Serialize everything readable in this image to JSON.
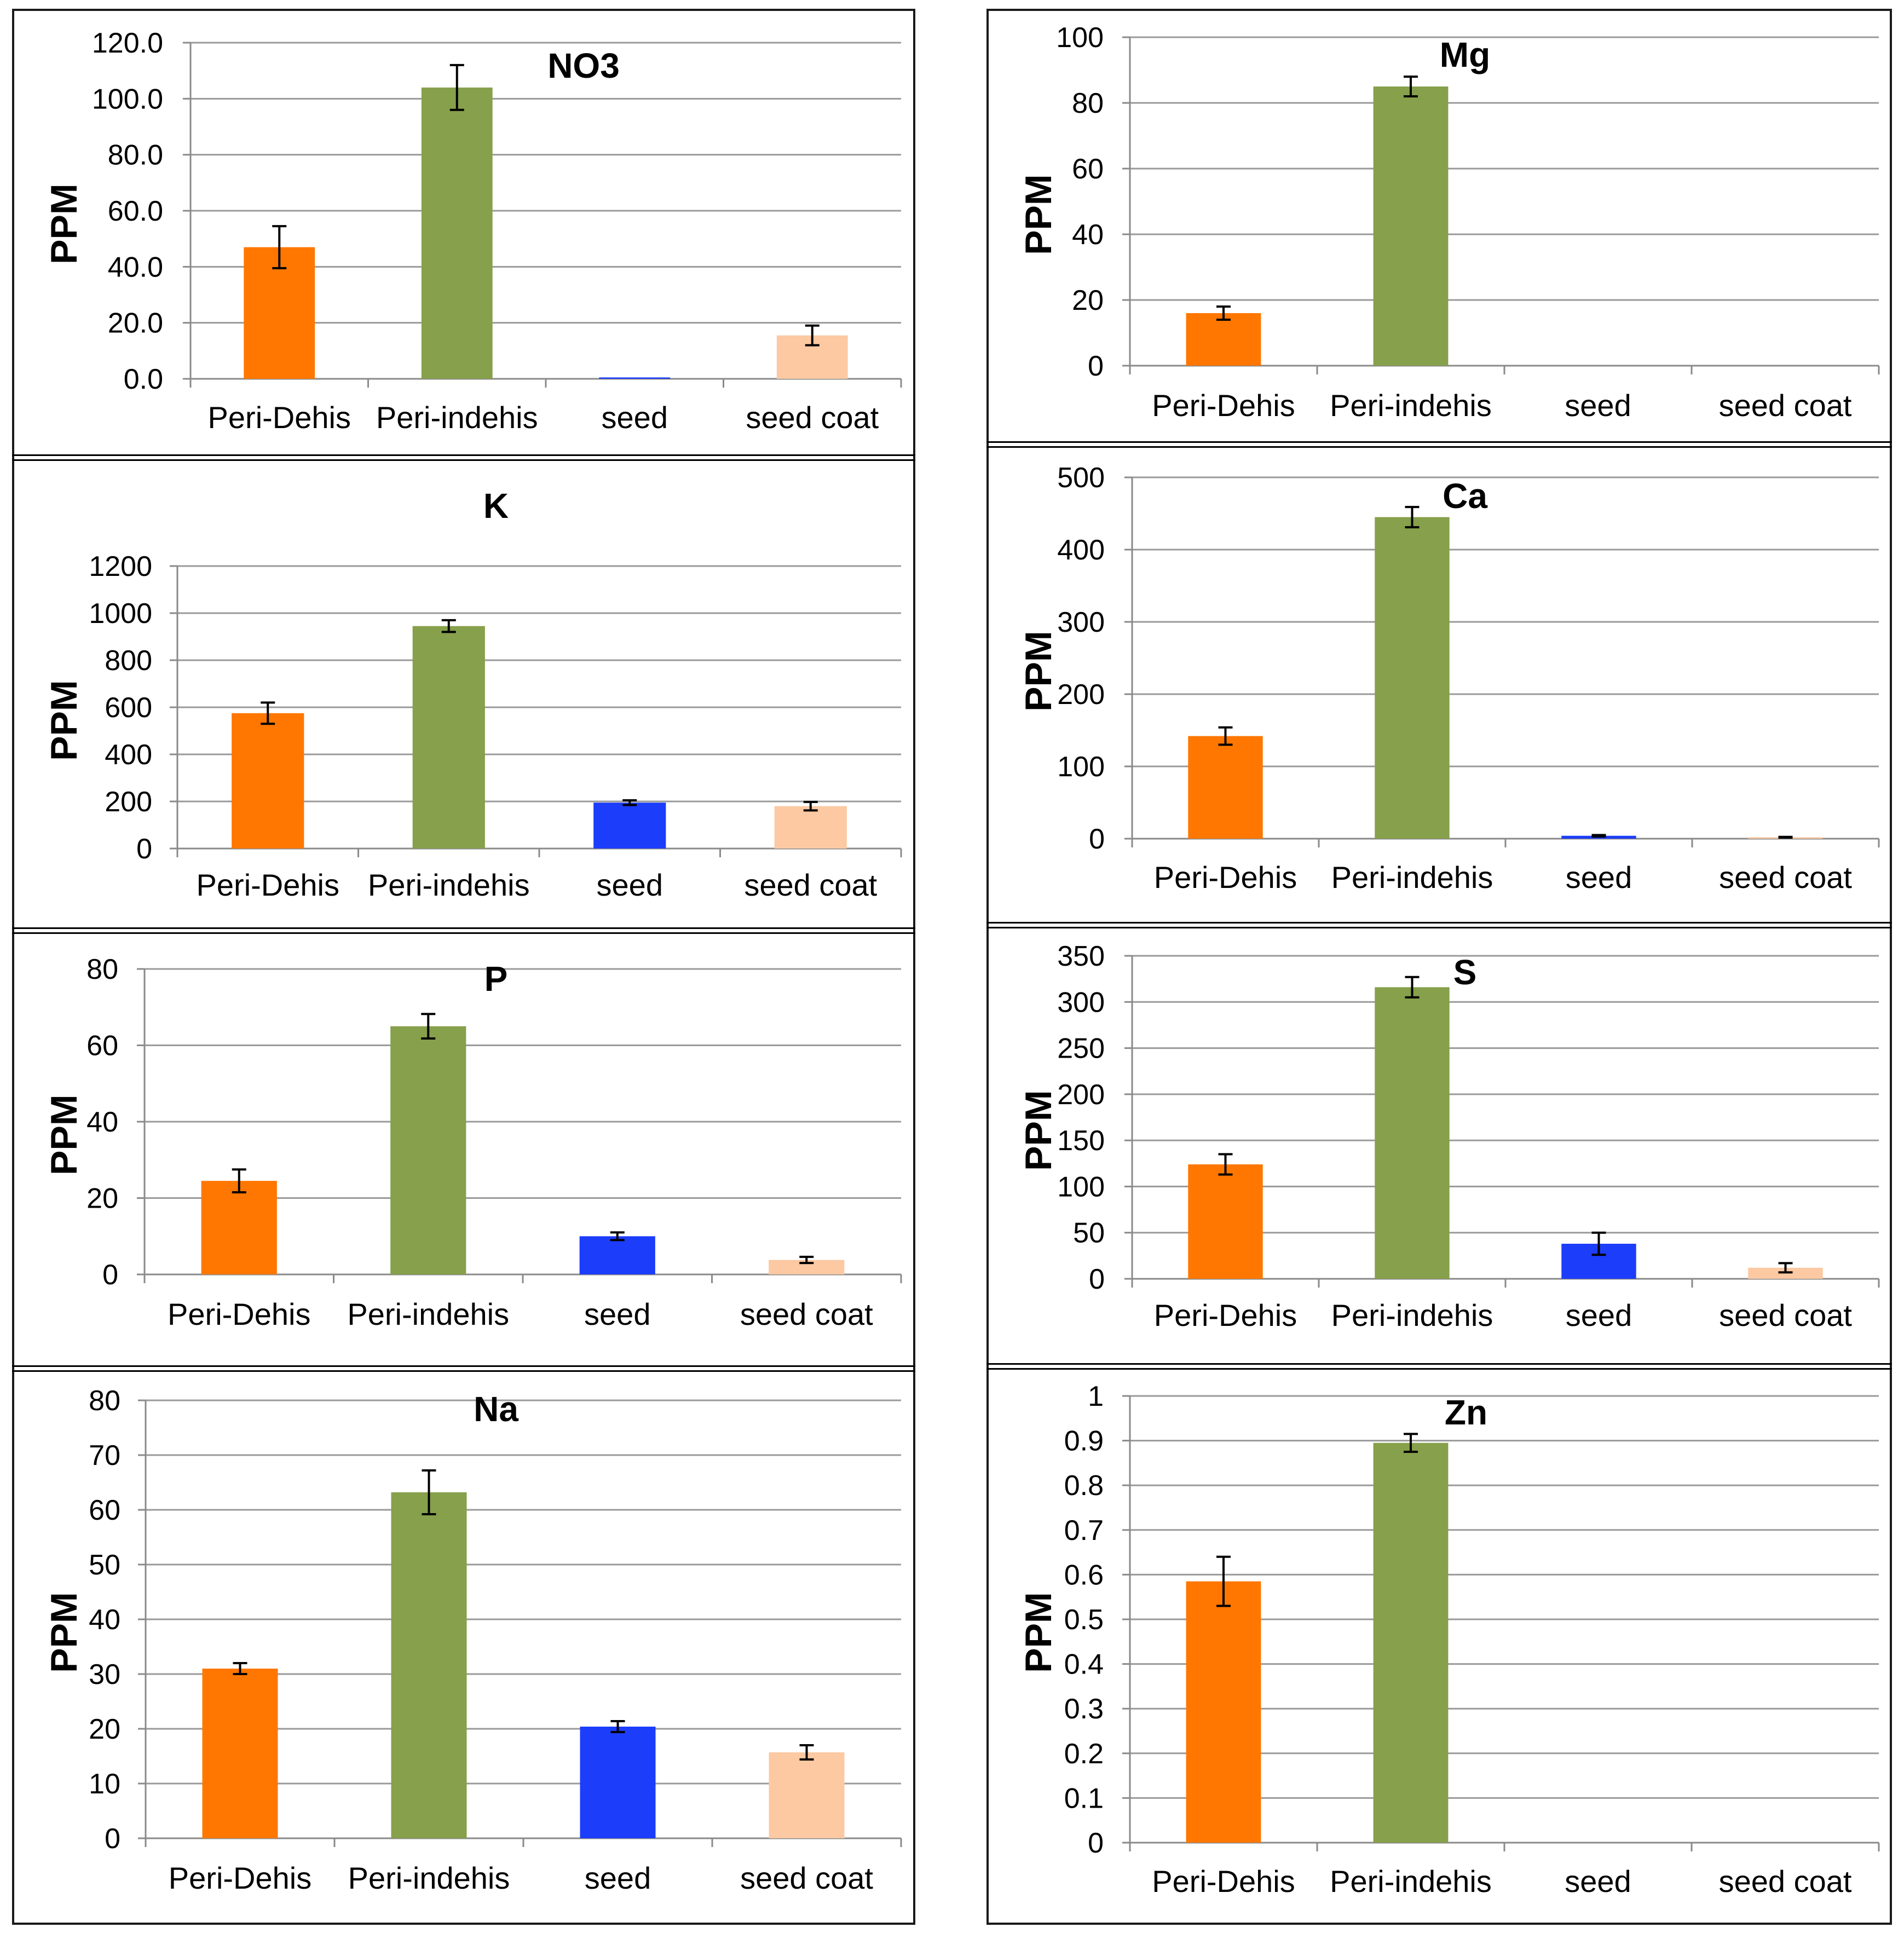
{
  "chart_data": [
    {
      "type": "bar",
      "title": "NO3",
      "ylabel": "PPM",
      "categories": [
        "Peri-Dehis",
        "Peri-indehis",
        "seed",
        "seed coat"
      ],
      "values": [
        47.0,
        104.0,
        0.5,
        15.5
      ],
      "errors": [
        7.5,
        8.0,
        0.0,
        3.5
      ],
      "ylim": [
        0,
        120
      ],
      "yticks": [
        "0.0",
        "20.0",
        "40.0",
        "60.0",
        "80.0",
        "100.0",
        "120.0"
      ],
      "colors": [
        "#ff7700",
        "#86a04b",
        "#1c3dfa",
        "#fcc9a2"
      ],
      "grid": true
    },
    {
      "type": "bar",
      "title": "Mg",
      "ylabel": "PPM",
      "categories": [
        "Peri-Dehis",
        "Peri-indehis",
        "seed",
        "seed coat"
      ],
      "values": [
        16,
        85,
        0,
        0
      ],
      "errors": [
        2,
        3,
        0,
        0
      ],
      "ylim": [
        0,
        100
      ],
      "yticks": [
        "0",
        "20",
        "40",
        "60",
        "80",
        "100"
      ],
      "colors": [
        "#ff7700",
        "#86a04b",
        "#1c3dfa",
        "#fcc9a2"
      ],
      "grid": true
    },
    {
      "type": "bar",
      "title": "K",
      "ylabel": "PPM",
      "categories": [
        "Peri-Dehis",
        "Peri-indehis",
        "seed",
        "seed coat"
      ],
      "values": [
        575,
        945,
        195,
        180
      ],
      "errors": [
        45,
        25,
        10,
        18
      ],
      "ylim": [
        0,
        1200
      ],
      "yticks": [
        "0",
        "200",
        "400",
        "600",
        "800",
        "1000",
        "1200"
      ],
      "colors": [
        "#ff7700",
        "#86a04b",
        "#1c3dfa",
        "#fcc9a2"
      ],
      "grid": true
    },
    {
      "type": "bar",
      "title": "Ca",
      "ylabel": "PPM",
      "categories": [
        "Peri-Dehis",
        "Peri-indehis",
        "seed",
        "seed coat"
      ],
      "values": [
        142,
        445,
        4,
        2
      ],
      "errors": [
        12,
        14,
        1,
        0.5
      ],
      "ylim": [
        0,
        500
      ],
      "yticks": [
        "0",
        "100",
        "200",
        "300",
        "400",
        "500"
      ],
      "colors": [
        "#ff7700",
        "#86a04b",
        "#1c3dfa",
        "#fcc9a2"
      ],
      "grid": true
    },
    {
      "type": "bar",
      "title": "P",
      "ylabel": "PPM",
      "categories": [
        "Peri-Dehis",
        "Peri-indehis",
        "seed",
        "seed coat"
      ],
      "values": [
        24.5,
        65,
        10,
        3.8
      ],
      "errors": [
        3,
        3.2,
        1,
        0.8
      ],
      "ylim": [
        0,
        80
      ],
      "yticks": [
        "0",
        "20",
        "40",
        "60",
        "80"
      ],
      "colors": [
        "#ff7700",
        "#86a04b",
        "#1c3dfa",
        "#fcc9a2"
      ],
      "grid": true
    },
    {
      "type": "bar",
      "title": "S",
      "ylabel": "PPM",
      "categories": [
        "Peri-Dehis",
        "Peri-indehis",
        "seed",
        "seed coat"
      ],
      "values": [
        124,
        316,
        38,
        12
      ],
      "errors": [
        11,
        11,
        12,
        5
      ],
      "ylim": [
        0,
        350
      ],
      "yticks": [
        "0",
        "50",
        "100",
        "150",
        "200",
        "250",
        "300",
        "350"
      ],
      "colors": [
        "#ff7700",
        "#86a04b",
        "#1c3dfa",
        "#fcc9a2"
      ],
      "grid": true
    },
    {
      "type": "bar",
      "title": "Na",
      "ylabel": "PPM",
      "categories": [
        "Peri-Dehis",
        "Peri-indehis",
        "seed",
        "seed coat"
      ],
      "values": [
        31,
        63.2,
        20.4,
        15.7
      ],
      "errors": [
        1,
        4,
        1,
        1.3
      ],
      "ylim": [
        0,
        80
      ],
      "yticks": [
        "0",
        "10",
        "20",
        "30",
        "40",
        "50",
        "60",
        "70",
        "80"
      ],
      "colors": [
        "#ff7700",
        "#86a04b",
        "#1c3dfa",
        "#fcc9a2"
      ],
      "grid": true
    },
    {
      "type": "bar",
      "title": "Zn",
      "ylabel": "PPM",
      "categories": [
        "Peri-Dehis",
        "Peri-indehis",
        "seed",
        "seed coat"
      ],
      "values": [
        0.585,
        0.895,
        0,
        0
      ],
      "errors": [
        0.055,
        0.02,
        0,
        0
      ],
      "ylim": [
        0,
        1
      ],
      "yticks": [
        "0",
        "0.1",
        "0.2",
        "0.3",
        "0.4",
        "0.5",
        "0.6",
        "0.7",
        "0.8",
        "0.9",
        "1"
      ],
      "colors": [
        "#ff7700",
        "#86a04b",
        "#1c3dfa",
        "#fcc9a2"
      ],
      "grid": true
    }
  ]
}
